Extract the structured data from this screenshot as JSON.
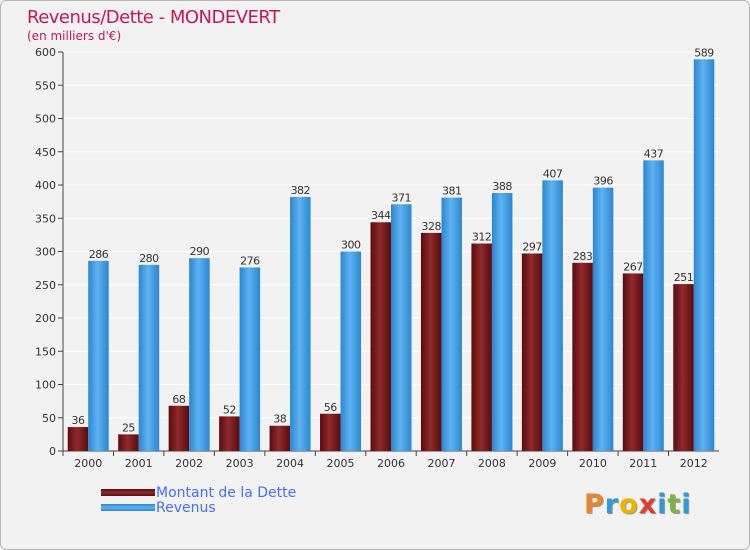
{
  "chart_data": {
    "type": "bar",
    "title": "Revenus/Dette - MONDEVERT",
    "subtitle": "(en milliers d'€)",
    "xlabel": "",
    "ylabel": "",
    "ylim": [
      0,
      600
    ],
    "yticks": [
      0,
      50,
      100,
      150,
      200,
      250,
      300,
      350,
      400,
      450,
      500,
      550,
      600
    ],
    "grid": true,
    "categories": [
      "2000",
      "2001",
      "2002",
      "2003",
      "2004",
      "2005",
      "2006",
      "2007",
      "2008",
      "2009",
      "2010",
      "2011",
      "2012"
    ],
    "series": [
      {
        "name": "Montant de la Dette",
        "color": "#7a1417",
        "values": [
          36,
          25,
          68,
          52,
          38,
          56,
          344,
          328,
          312,
          297,
          283,
          267,
          251
        ]
      },
      {
        "name": "Revenus",
        "color": "#3f9ee6",
        "values": [
          286,
          280,
          290,
          276,
          382,
          300,
          371,
          381,
          388,
          407,
          396,
          437,
          589
        ]
      }
    ],
    "legend_position": "bottom-left"
  },
  "brand": {
    "logo_letters": [
      "P",
      "r",
      "o",
      "x",
      "i",
      "t",
      "i"
    ],
    "logo_colors": [
      "#e8852a",
      "#2f9ad6",
      "#f0b400",
      "#e23b2e",
      "#2f9ad6",
      "#7cb342",
      "#2f9ad6"
    ]
  }
}
